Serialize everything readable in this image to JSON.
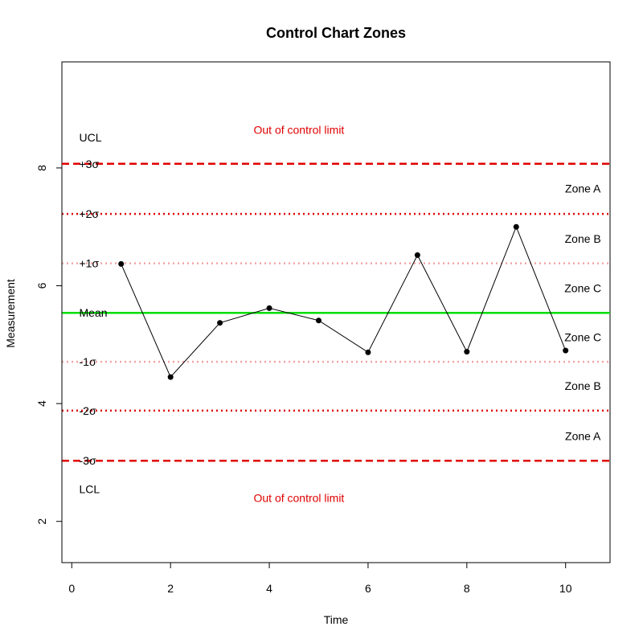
{
  "chart_data": {
    "type": "line",
    "title": "Control Chart Zones",
    "xlabel": "Time",
    "ylabel": "Measurement",
    "xlim": [
      -0.2,
      10.9
    ],
    "ylim": [
      1.3,
      9.8
    ],
    "x_ticks": [
      0,
      2,
      4,
      6,
      8,
      10
    ],
    "y_ticks": [
      2,
      4,
      6,
      8
    ],
    "grid": false,
    "series": [
      {
        "x": [
          1,
          2,
          3,
          4,
          5,
          6,
          7,
          8,
          9,
          10
        ],
        "y": [
          6.37,
          4.45,
          5.37,
          5.62,
          5.41,
          4.87,
          6.52,
          4.88,
          7.0,
          4.9
        ],
        "color": "#000000"
      }
    ],
    "reference_lines": [
      {
        "label": "+3σ",
        "y": 8.07,
        "color": "#e00000",
        "style": "dashed"
      },
      {
        "label": "+2σ",
        "y": 7.22,
        "color": "#e00000",
        "style": "dotted"
      },
      {
        "label": "+1σ",
        "y": 6.38,
        "color": "#f4a4a4",
        "style": "dotted"
      },
      {
        "label": "Mean",
        "y": 5.54,
        "color": "#00dd00",
        "style": "solid"
      },
      {
        "label": "-1σ",
        "y": 4.71,
        "color": "#f4a4a4",
        "style": "dotted"
      },
      {
        "label": "-2σ",
        "y": 3.88,
        "color": "#e00000",
        "style": "dotted"
      },
      {
        "label": "-3σ",
        "y": 3.03,
        "color": "#e00000",
        "style": "dashed"
      }
    ],
    "side_labels": [
      {
        "text": "UCL",
        "x": 0.15,
        "y": 8.52
      },
      {
        "text": "LCL",
        "x": 0.15,
        "y": 2.55
      }
    ],
    "zone_labels": [
      {
        "text": "Zone A",
        "x": 10.35,
        "y": 7.65
      },
      {
        "text": "Zone B",
        "x": 10.35,
        "y": 6.8
      },
      {
        "text": "Zone C",
        "x": 10.35,
        "y": 5.96
      },
      {
        "text": "Zone C",
        "x": 10.35,
        "y": 5.13
      },
      {
        "text": "Zone B",
        "x": 10.35,
        "y": 4.3
      },
      {
        "text": "Zone A",
        "x": 10.35,
        "y": 3.45
      }
    ],
    "limit_annotations": [
      {
        "text": "Out of control limit",
        "x": 4.6,
        "y": 8.65,
        "color": "#e00000"
      },
      {
        "text": "Out of control limit",
        "x": 4.6,
        "y": 2.4,
        "color": "#e00000"
      }
    ]
  }
}
